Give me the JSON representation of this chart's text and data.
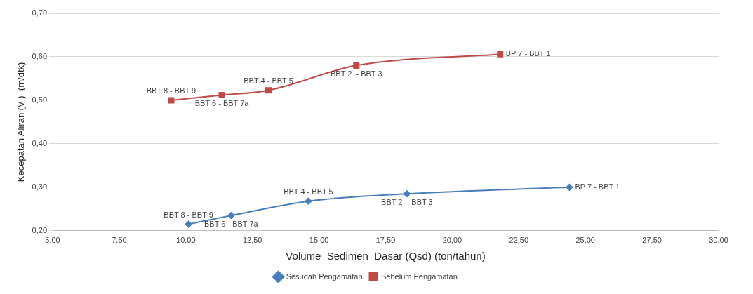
{
  "chart_data": {
    "type": "line",
    "xlabel": "Volume  Sedimen  Dasar (Qsd) (ton/tahun)",
    "ylabel": "Kecepatan Aliran (V )  (m/dtk)",
    "xlim": [
      5,
      30
    ],
    "xticks": [
      {
        "value": 5,
        "label": "5,00"
      },
      {
        "value": 7.5,
        "label": "7,50"
      },
      {
        "value": 10,
        "label": "10,00"
      },
      {
        "value": 12.5,
        "label": "12,50"
      },
      {
        "value": 15,
        "label": "15,00"
      },
      {
        "value": 17.5,
        "label": "17,50"
      },
      {
        "value": 20,
        "label": "20,00"
      },
      {
        "value": 22.5,
        "label": "22,50"
      },
      {
        "value": 25,
        "label": "25,00"
      },
      {
        "value": 27.5,
        "label": "27,50"
      },
      {
        "value": 30,
        "label": "30,00"
      }
    ],
    "ylim": [
      0.2,
      0.7
    ],
    "yticks": [
      {
        "value": 0.2,
        "label": "0,20"
      },
      {
        "value": 0.3,
        "label": "0,30"
      },
      {
        "value": 0.4,
        "label": "0,40"
      },
      {
        "value": 0.5,
        "label": "0,50"
      },
      {
        "value": 0.6,
        "label": "0,60"
      },
      {
        "value": 0.7,
        "label": "0,70"
      }
    ],
    "grid": "y",
    "legend": "bottom",
    "series": [
      {
        "name": "Sesudah Pengamatan",
        "color": "#4a7ebb",
        "marker": "diamond",
        "x": [
          10.1,
          11.7,
          14.6,
          18.3,
          24.4
        ],
        "values": [
          0.215,
          0.235,
          0.268,
          0.285,
          0.3
        ],
        "value_labels": [
          "BBT 8 - BBT 9",
          "BBT 6 - BBT 7a",
          "BBT 4 - BBT 5",
          "BBT 2  - BBT 3",
          "BP 7 - BBT 1"
        ]
      },
      {
        "name": "Sebelum Pengamatan",
        "color": "#be4b48",
        "marker": "square",
        "x": [
          9.45,
          11.35,
          13.1,
          16.4,
          21.8
        ],
        "values": [
          0.5,
          0.512,
          0.523,
          0.58,
          0.606
        ],
        "value_labels": [
          "BBT 8 - BBT 9",
          "BBT 6 - BBT 7a",
          "BBT 4 - BBT 5",
          "BBT 2  - BBT 3",
          "BP 7 - BBT 1"
        ]
      }
    ]
  }
}
